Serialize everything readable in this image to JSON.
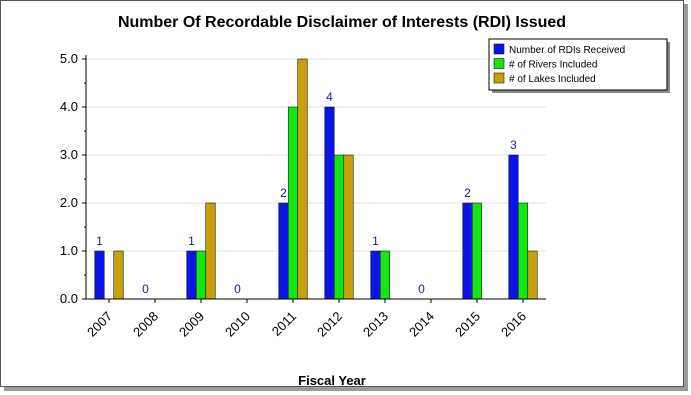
{
  "chart_data": {
    "type": "bar",
    "title": "Number Of Recordable Disclaimer of Interests (RDI) Issued",
    "xlabel": "Fiscal Year",
    "ylabel": "",
    "ylim": [
      0,
      5
    ],
    "yticks": [
      "0.0",
      "1.0",
      "2.0",
      "3.0",
      "4.0",
      "5.0"
    ],
    "categories": [
      "2007",
      "2008",
      "2009",
      "2010",
      "2011",
      "2012",
      "2013",
      "2014",
      "2015",
      "2016"
    ],
    "series": [
      {
        "name": "Number of RDIs Received",
        "color": "#0a14e6",
        "values": [
          1,
          0,
          1,
          0,
          2,
          4,
          1,
          0,
          2,
          3
        ]
      },
      {
        "name": "# of Rivers Included",
        "color": "#14e614",
        "values": [
          0,
          0,
          1,
          0,
          4,
          3,
          1,
          0,
          2,
          2
        ]
      },
      {
        "name": "# of Lakes Included",
        "color": "#c8a00a",
        "values": [
          1,
          0,
          2,
          0,
          5,
          3,
          0,
          0,
          0,
          1
        ]
      }
    ],
    "data_labels": [
      "1",
      "0",
      "1",
      "0",
      "2",
      "4",
      "1",
      "0",
      "2",
      "3"
    ],
    "legend_position": "top-right",
    "grid": true
  }
}
